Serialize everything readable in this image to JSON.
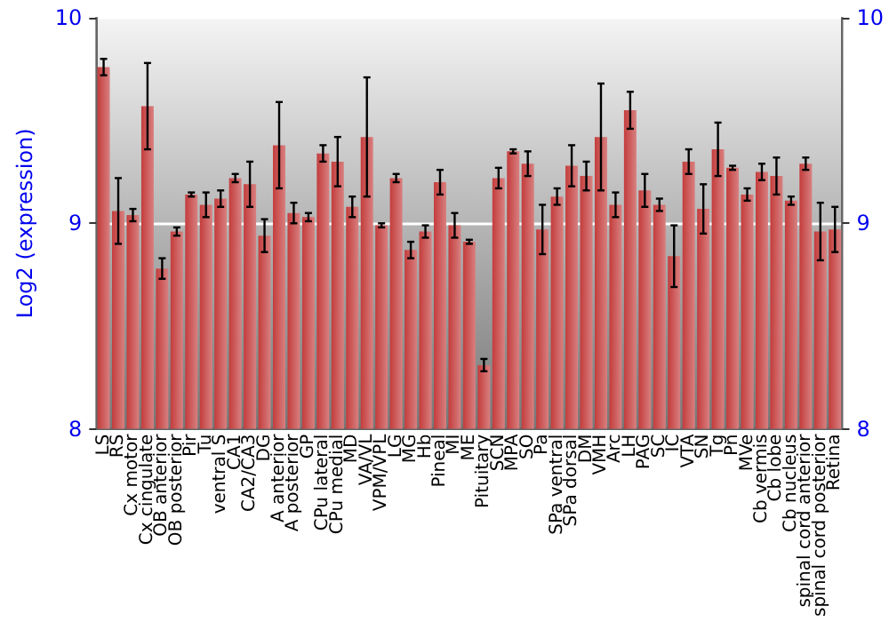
{
  "chart_data": {
    "type": "bar",
    "ylabel": "Log2 (expression)",
    "categories": [
      "LS",
      "RS",
      "Cx motor",
      "Cx cingulate",
      "OB anterior",
      "OB posterior",
      "Pir",
      "Tu",
      "ventral S",
      "CA1",
      "CA2/CA3",
      "DG",
      "A anterior",
      "A posterior",
      "GP",
      "CPu lateral",
      "CPu medial",
      "MD",
      "VA/VL",
      "VPM/VPL",
      "LG",
      "MG",
      "Hb",
      "Pineal",
      "MI",
      "ME",
      "Pituitary",
      "SCN",
      "MPA",
      "SO",
      "Pa",
      "SPa ventral",
      "SPa dorsal",
      "DM",
      "VMH",
      "Arc",
      "LH",
      "PAG",
      "SC",
      "IC",
      "VTA",
      "SN",
      "Tg",
      "Pn",
      "MVe",
      "Cb vermis",
      "Cb lobe",
      "Cb nucleus",
      "spinal cord anterior",
      "spinal cord posterior",
      "Retina"
    ],
    "values": [
      9.76,
      9.06,
      9.04,
      9.57,
      8.78,
      8.96,
      9.14,
      9.09,
      9.12,
      9.22,
      9.19,
      8.94,
      9.38,
      9.05,
      9.03,
      9.34,
      9.3,
      9.08,
      9.42,
      8.99,
      9.22,
      8.87,
      8.96,
      9.2,
      8.99,
      8.91,
      8.31,
      9.22,
      9.35,
      9.29,
      8.97,
      9.13,
      9.28,
      9.23,
      9.42,
      9.09,
      9.55,
      9.16,
      9.09,
      8.84,
      9.3,
      9.07,
      9.36,
      9.27,
      9.14,
      9.25,
      9.23,
      9.11,
      9.29,
      8.96,
      8.97
    ],
    "errors": [
      0.04,
      0.16,
      0.03,
      0.21,
      0.05,
      0.02,
      0.01,
      0.06,
      0.04,
      0.02,
      0.11,
      0.08,
      0.21,
      0.05,
      0.02,
      0.04,
      0.12,
      0.05,
      0.29,
      0.01,
      0.02,
      0.04,
      0.03,
      0.06,
      0.06,
      0.01,
      0.03,
      0.05,
      0.01,
      0.06,
      0.12,
      0.04,
      0.1,
      0.07,
      0.26,
      0.06,
      0.09,
      0.08,
      0.03,
      0.15,
      0.06,
      0.12,
      0.13,
      0.01,
      0.03,
      0.04,
      0.09,
      0.02,
      0.03,
      0.14,
      0.11
    ],
    "color": "#c43c3c",
    "ylim": [
      8,
      10
    ],
    "yticks": [
      8,
      9,
      10
    ],
    "y2lim": [
      8,
      10
    ],
    "y2ticks": [
      8,
      9,
      10
    ],
    "grid": "y"
  }
}
